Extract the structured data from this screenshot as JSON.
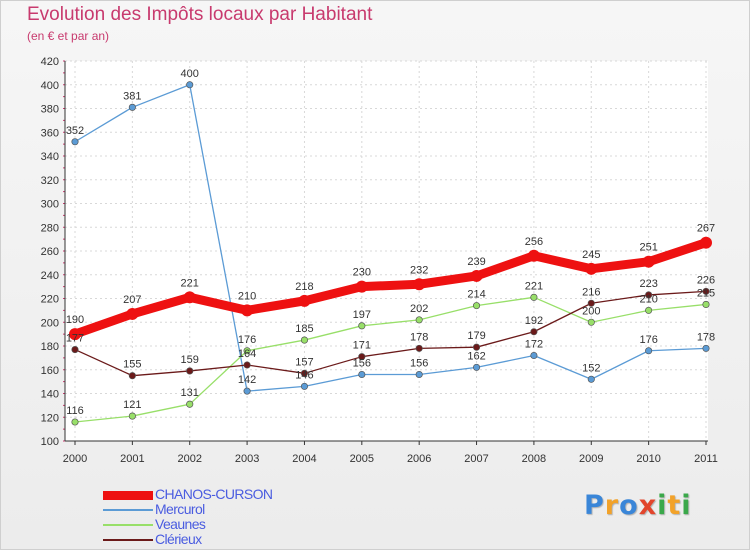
{
  "title": "Evolution des Impôts locaux par Habitant",
  "subtitle": "(en € et par an)",
  "logo": {
    "letters": [
      "P",
      "r",
      "o",
      "x",
      "i",
      "t",
      "i"
    ],
    "colors": [
      "#3a86d8",
      "#f2a229",
      "#3a86d8",
      "#e2452c",
      "#3aa84a",
      "#f2a229",
      "#3aa84a"
    ]
  },
  "chart_data": {
    "type": "line",
    "x": [
      "2000",
      "2001",
      "2002",
      "2003",
      "2004",
      "2005",
      "2006",
      "2007",
      "2008",
      "2009",
      "2010",
      "2011"
    ],
    "ylim": [
      100,
      420
    ],
    "yticks": [
      100,
      120,
      140,
      160,
      180,
      200,
      220,
      240,
      260,
      280,
      300,
      320,
      340,
      360,
      380,
      400,
      420
    ],
    "grid": true,
    "legend_position": "bottom-left",
    "series": [
      {
        "name": "CHANOS-CURSON",
        "color": "#ee1111",
        "values": [
          190,
          207,
          221,
          210,
          218,
          230,
          232,
          239,
          256,
          245,
          251,
          267
        ]
      },
      {
        "name": "Mercurol",
        "color": "#5b9bd5",
        "values": [
          352,
          381,
          400,
          142,
          146,
          156,
          156,
          162,
          172,
          152,
          176,
          178
        ]
      },
      {
        "name": "Veaunes",
        "color": "#98df69",
        "values": [
          116,
          121,
          131,
          176,
          185,
          197,
          202,
          214,
          221,
          200,
          210,
          215
        ]
      },
      {
        "name": "Clérieux",
        "color": "#6b1a1a",
        "values": [
          177,
          155,
          159,
          164,
          157,
          171,
          178,
          179,
          192,
          216,
          223,
          226
        ]
      }
    ],
    "data_labels": {
      "CHANOS-CURSON": [
        "190",
        "207",
        "221",
        "210",
        "218",
        "230",
        "232",
        "239",
        "256",
        "245",
        "251",
        "267"
      ],
      "Mercurol": [
        "352",
        "381",
        "400",
        "142",
        "146",
        "156",
        "156",
        "162",
        "172",
        "152",
        "176",
        "178"
      ],
      "Veaunes": [
        "116",
        "121",
        "131",
        "176",
        "185",
        "197",
        "202",
        "214",
        "221",
        "200",
        "210",
        "215"
      ],
      "Clérieux": [
        "177",
        "155",
        "159",
        "164",
        "157",
        "171",
        "178",
        "179",
        "192",
        "216",
        "223",
        "226"
      ]
    }
  }
}
